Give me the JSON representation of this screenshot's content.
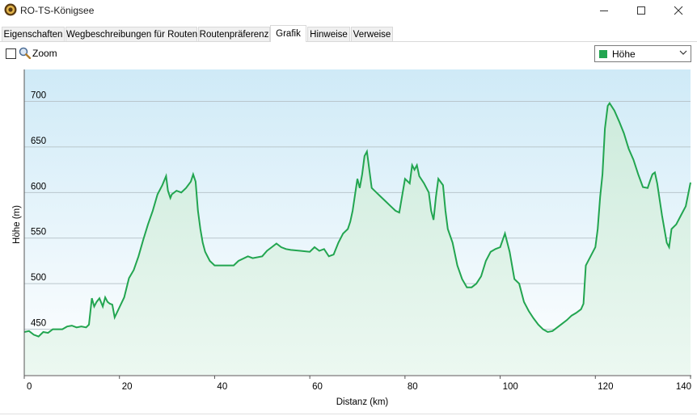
{
  "window": {
    "title": "RO-TS-Königsee",
    "icon": "app-logo-icon"
  },
  "tabs": [
    {
      "label": "Eigenschaften"
    },
    {
      "label": "Wegbeschreibungen für Routen"
    },
    {
      "label": "Routenpräferenz"
    },
    {
      "label": "Grafik",
      "active": true
    },
    {
      "label": "Hinweise"
    },
    {
      "label": "Verweise"
    }
  ],
  "toolbar": {
    "zoom_label": "Zoom",
    "zoom_checked": false
  },
  "selector": {
    "value": "Höhe",
    "swatch_color": "#22a550"
  },
  "chart_data": {
    "type": "area",
    "xlabel": "Distanz  (km)",
    "ylabel": "Höhe (m)",
    "xlim": [
      0,
      140
    ],
    "ylim": [
      400,
      735
    ],
    "xticks": [
      0,
      20,
      40,
      60,
      80,
      100,
      120,
      140
    ],
    "yticks": [
      450,
      500,
      550,
      600,
      650,
      700
    ],
    "grid": "horizontal",
    "line_color": "#22a550",
    "series": [
      {
        "x": [
          0,
          1,
          2,
          3,
          4,
          5,
          6,
          7,
          8,
          9,
          10,
          11,
          12,
          13,
          13.6,
          14.2,
          14.7,
          15.2,
          15.8,
          16.5,
          17,
          17.5,
          18,
          18.5,
          19,
          20,
          21,
          22,
          23,
          24,
          25,
          26,
          27,
          28,
          29,
          29.8,
          30.2,
          30.7,
          31,
          32,
          33,
          34,
          35,
          35.5,
          36,
          36.5,
          37,
          37.5,
          38,
          39,
          40,
          42,
          44,
          45,
          47,
          48,
          50,
          51,
          52,
          53,
          54,
          55,
          56,
          58,
          60,
          61,
          62,
          63,
          64,
          65,
          66,
          67,
          68,
          68.5,
          69,
          70,
          70.5,
          71,
          71.5,
          72,
          73,
          74,
          75,
          76,
          77,
          78,
          78.8,
          79.2,
          80,
          81,
          81.5,
          82,
          82.5,
          83,
          84,
          85,
          85.5,
          86,
          86.5,
          87,
          88,
          88.5,
          89,
          90,
          91,
          92,
          93,
          94,
          95,
          96,
          97,
          98,
          99,
          100,
          101,
          102,
          103,
          104,
          105,
          106,
          107,
          108,
          109,
          110,
          111,
          112,
          113,
          114,
          115,
          116,
          117,
          117.5,
          118,
          119,
          120,
          120.5,
          121,
          121.5,
          122,
          122.6,
          123,
          124,
          125,
          126,
          127,
          128,
          129,
          130,
          131,
          131.5,
          132,
          132.5,
          133,
          134,
          135,
          135.5,
          136,
          137,
          138,
          139,
          140
        ],
        "y": [
          447,
          448,
          444,
          442,
          447,
          446,
          450,
          450,
          450,
          453,
          454,
          452,
          453,
          452,
          455,
          484,
          475,
          480,
          484,
          475,
          485,
          480,
          478,
          477,
          463,
          474,
          485,
          506,
          515,
          530,
          548,
          565,
          580,
          598,
          608,
          618,
          602,
          594,
          598,
          602,
          600,
          605,
          612,
          620,
          612,
          580,
          560,
          545,
          535,
          525,
          520,
          520,
          520,
          525,
          530,
          528,
          530,
          536,
          540,
          544,
          540,
          538,
          537,
          536,
          535,
          540,
          536,
          538,
          530,
          532,
          545,
          555,
          560,
          568,
          580,
          615,
          605,
          620,
          640,
          645,
          605,
          600,
          595,
          590,
          585,
          580,
          578,
          590,
          615,
          610,
          630,
          625,
          630,
          618,
          610,
          600,
          580,
          570,
          595,
          615,
          608,
          580,
          560,
          545,
          520,
          505,
          496,
          496,
          500,
          508,
          525,
          535,
          538,
          540,
          555,
          535,
          505,
          500,
          480,
          470,
          462,
          455,
          450,
          447,
          448,
          452,
          456,
          460,
          465,
          468,
          472,
          478,
          520,
          530,
          540,
          560,
          595,
          620,
          670,
          695,
          698,
          690,
          678,
          665,
          648,
          636,
          620,
          606,
          605,
          613,
          620,
          622,
          610,
          575,
          545,
          540,
          560,
          565,
          575,
          585,
          611
        ]
      }
    ]
  }
}
